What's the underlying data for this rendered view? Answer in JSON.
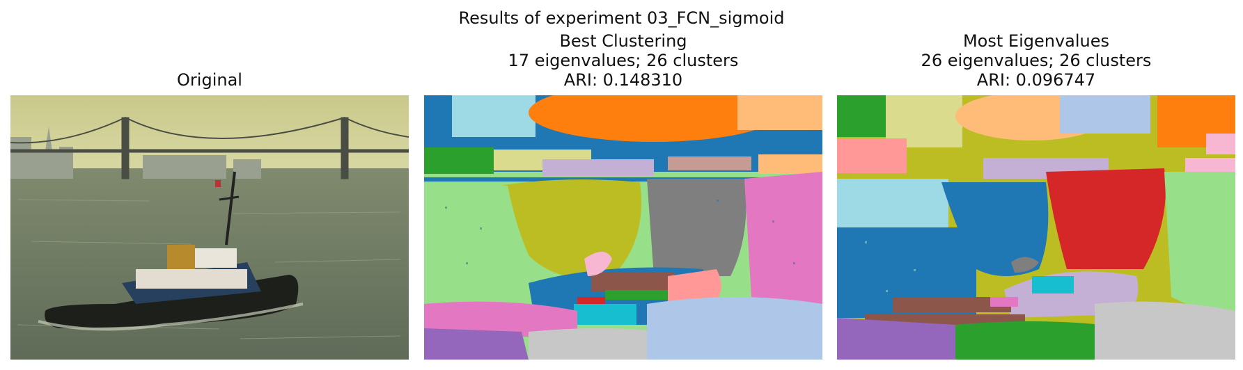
{
  "figure": {
    "suptitle": "Results of experiment 03_FCN_sigmoid"
  },
  "panels": [
    {
      "title_lines": [
        "Original"
      ]
    },
    {
      "title_lines": [
        "Best Clustering",
        "17 eigenvalues; 26 clusters",
        "ARI: 0.148310"
      ]
    },
    {
      "title_lines": [
        "Most Eigenvalues",
        "26 eigenvalues; 26 clusters",
        "ARI: 0.096747"
      ]
    }
  ],
  "palette": {
    "blue": "#1f77b4",
    "light_blue": "#9edae5",
    "orange": "#ff7f0e",
    "light_orange": "#ffbb78",
    "green": "#2ca02c",
    "light_green": "#98df8a",
    "red": "#d62728",
    "pink": "#e377c2",
    "light_pink": "#f7b6d2",
    "salmon": "#ff9896",
    "purple": "#9467bd",
    "lavender": "#c5b0d5",
    "brown": "#8c564b",
    "tan": "#c49c94",
    "gray": "#7f7f7f",
    "light_gray": "#c7c7c7",
    "olive": "#bcbd22",
    "khaki": "#dbdb8d",
    "cyan": "#17becf",
    "periwinkle": "#aec7e8"
  }
}
